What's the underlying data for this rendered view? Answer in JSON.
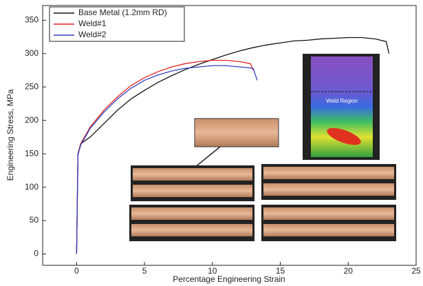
{
  "chart_data": {
    "type": "line",
    "x_label": "Percentage Engineering Strain",
    "y_label": "Engineering Stress, MPa",
    "xlim": [
      -2.5,
      25
    ],
    "ylim": [
      -17,
      372
    ],
    "xticks": [
      0,
      5,
      10,
      15,
      20,
      25
    ],
    "yticks": [
      0,
      50,
      100,
      150,
      200,
      250,
      300,
      350
    ],
    "grid": false,
    "legend": "upper left",
    "annotations": [
      "Weld Region"
    ],
    "series": [
      {
        "name": "Base Metal (1.2mm RD)",
        "color": "#111111",
        "x": [
          0,
          0.1,
          0.3,
          1,
          2,
          3,
          4,
          5,
          6,
          7,
          8,
          9,
          10,
          11,
          12,
          13,
          14,
          15,
          16,
          17,
          18,
          19,
          20,
          21,
          22,
          22.8,
          23
        ],
        "values": [
          0,
          150,
          165,
          175,
          195,
          215,
          232,
          245,
          257,
          267,
          276,
          284,
          291,
          298,
          304,
          309,
          313,
          316,
          319,
          320,
          322,
          323,
          324,
          324,
          322,
          318,
          300
        ]
      },
      {
        "name": "Weld#1",
        "color": "#e02020",
        "x": [
          0,
          0.1,
          0.3,
          1,
          2,
          3,
          4,
          5,
          6,
          7,
          8,
          9,
          10,
          11,
          12,
          12.8,
          13
        ],
        "values": [
          0,
          150,
          165,
          190,
          215,
          235,
          252,
          264,
          273,
          280,
          285,
          288,
          290,
          290,
          288,
          285,
          275
        ]
      },
      {
        "name": "Weld#2",
        "color": "#3040c0",
        "x": [
          0,
          0.1,
          0.3,
          1,
          2,
          3,
          4,
          5,
          6,
          7,
          8,
          9,
          10,
          11,
          12,
          13,
          13.3
        ],
        "values": [
          0,
          148,
          163,
          188,
          212,
          232,
          248,
          260,
          268,
          274,
          278,
          280,
          282,
          282,
          280,
          278,
          260
        ]
      }
    ]
  }
}
